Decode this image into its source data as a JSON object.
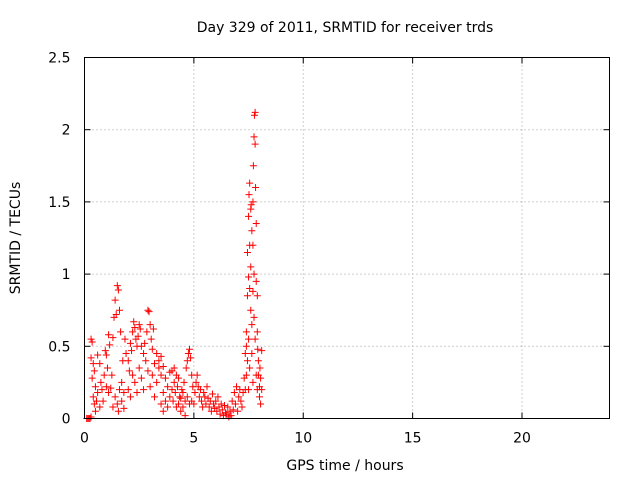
{
  "chart_data": {
    "type": "scatter",
    "title": "Day 329 of 2011, SRMTID for receiver trds",
    "xlabel": "GPS time / hours",
    "ylabel": "SRMTID / TECUs",
    "xlim": [
      0,
      24
    ],
    "ylim": [
      0,
      2.5
    ],
    "xticks": [
      0,
      5,
      10,
      15,
      20
    ],
    "xtick_labels": [
      "0",
      "5",
      "10",
      "15",
      "20"
    ],
    "yticks": [
      0,
      0.5,
      1,
      1.5,
      2,
      2.5
    ],
    "ytick_labels": [
      "0",
      "0.5",
      "1",
      "1.5",
      "2",
      "2.5"
    ],
    "grid": true,
    "legend": "none",
    "marker": "+",
    "color": "#ff0000",
    "series": [
      {
        "name": "SRMTID",
        "points": [
          [
            0.1,
            0.0
          ],
          [
            0.15,
            0.0
          ],
          [
            0.2,
            0.0
          ],
          [
            0.25,
            0.0
          ],
          [
            0.3,
            0.01
          ],
          [
            0.3,
            0.55
          ],
          [
            0.35,
            0.53
          ],
          [
            0.3,
            0.42
          ],
          [
            0.4,
            0.38
          ],
          [
            0.45,
            0.33
          ],
          [
            0.35,
            0.28
          ],
          [
            0.5,
            0.22
          ],
          [
            0.4,
            0.15
          ],
          [
            0.45,
            0.1
          ],
          [
            0.5,
            0.05
          ],
          [
            0.55,
            0.12
          ],
          [
            0.6,
            0.18
          ],
          [
            0.6,
            0.44
          ],
          [
            0.7,
            0.38
          ],
          [
            0.75,
            0.25
          ],
          [
            0.8,
            0.2
          ],
          [
            0.85,
            0.12
          ],
          [
            0.7,
            0.08
          ],
          [
            0.9,
            0.3
          ],
          [
            0.95,
            0.47
          ],
          [
            1.0,
            0.44
          ],
          [
            1.0,
            0.22
          ],
          [
            1.05,
            0.35
          ],
          [
            1.1,
            0.18
          ],
          [
            1.1,
            0.58
          ],
          [
            1.15,
            0.51
          ],
          [
            1.2,
            0.21
          ],
          [
            1.25,
            0.3
          ],
          [
            1.3,
            0.56
          ],
          [
            1.35,
            0.7
          ],
          [
            1.4,
            0.82
          ],
          [
            1.45,
            0.72
          ],
          [
            1.5,
            0.92
          ],
          [
            1.55,
            0.89
          ],
          [
            1.6,
            0.75
          ],
          [
            1.65,
            0.6
          ],
          [
            1.6,
            0.2
          ],
          [
            1.7,
            0.25
          ],
          [
            1.75,
            0.4
          ],
          [
            1.8,
            0.18
          ],
          [
            1.85,
            0.55
          ],
          [
            1.9,
            0.45
          ],
          [
            1.5,
            0.1
          ],
          [
            1.55,
            0.05
          ],
          [
            1.7,
            0.12
          ],
          [
            1.8,
            0.07
          ],
          [
            1.4,
            0.15
          ],
          [
            1.3,
            0.08
          ],
          [
            2.0,
            0.4
          ],
          [
            2.05,
            0.33
          ],
          [
            2.1,
            0.52
          ],
          [
            2.15,
            0.47
          ],
          [
            2.2,
            0.6
          ],
          [
            2.25,
            0.67
          ],
          [
            2.3,
            0.63
          ],
          [
            2.35,
            0.55
          ],
          [
            2.4,
            0.5
          ],
          [
            2.45,
            0.57
          ],
          [
            2.5,
            0.65
          ],
          [
            2.55,
            0.62
          ],
          [
            2.0,
            0.2
          ],
          [
            2.1,
            0.15
          ],
          [
            2.2,
            0.3
          ],
          [
            2.3,
            0.25
          ],
          [
            2.4,
            0.18
          ],
          [
            2.5,
            0.35
          ],
          [
            2.6,
            0.28
          ],
          [
            2.7,
            0.2
          ],
          [
            2.8,
            0.4
          ],
          [
            2.9,
            0.33
          ],
          [
            2.6,
            0.5
          ],
          [
            2.7,
            0.45
          ],
          [
            2.75,
            0.52
          ],
          [
            2.85,
            0.6
          ],
          [
            2.9,
            0.75
          ],
          [
            2.95,
            0.74
          ],
          [
            3.0,
            0.65
          ],
          [
            3.05,
            0.55
          ],
          [
            3.1,
            0.48
          ],
          [
            3.15,
            0.62
          ],
          [
            3.2,
            0.38
          ],
          [
            3.0,
            0.22
          ],
          [
            3.1,
            0.3
          ],
          [
            3.2,
            0.15
          ],
          [
            3.3,
            0.25
          ],
          [
            3.4,
            0.35
          ],
          [
            3.5,
            0.3
          ],
          [
            3.6,
            0.18
          ],
          [
            3.7,
            0.28
          ],
          [
            3.8,
            0.22
          ],
          [
            3.9,
            0.32
          ],
          [
            3.5,
            0.1
          ],
          [
            3.6,
            0.05
          ],
          [
            3.7,
            0.12
          ],
          [
            3.8,
            0.08
          ],
          [
            3.9,
            0.15
          ],
          [
            3.3,
            0.45
          ],
          [
            3.4,
            0.4
          ],
          [
            3.5,
            0.43
          ],
          [
            3.6,
            0.36
          ],
          [
            4.0,
            0.2
          ],
          [
            4.05,
            0.12
          ],
          [
            4.1,
            0.25
          ],
          [
            4.15,
            0.18
          ],
          [
            4.2,
            0.3
          ],
          [
            4.25,
            0.22
          ],
          [
            4.3,
            0.1
          ],
          [
            4.35,
            0.15
          ],
          [
            4.4,
            0.05
          ],
          [
            4.45,
            0.2
          ],
          [
            4.5,
            0.08
          ],
          [
            4.55,
            0.25
          ],
          [
            4.6,
            0.12
          ],
          [
            4.65,
            0.35
          ],
          [
            4.7,
            0.4
          ],
          [
            4.75,
            0.45
          ],
          [
            4.8,
            0.48
          ],
          [
            4.85,
            0.42
          ],
          [
            4.9,
            0.3
          ],
          [
            4.95,
            0.22
          ],
          [
            4.0,
            0.33
          ],
          [
            4.1,
            0.35
          ],
          [
            4.2,
            0.08
          ],
          [
            4.3,
            0.28
          ],
          [
            4.4,
            0.14
          ],
          [
            4.5,
            0.18
          ],
          [
            4.6,
            0.02
          ],
          [
            4.7,
            0.15
          ],
          [
            4.8,
            0.1
          ],
          [
            4.9,
            0.12
          ],
          [
            5.0,
            0.1
          ],
          [
            5.05,
            0.18
          ],
          [
            5.1,
            0.25
          ],
          [
            5.15,
            0.3
          ],
          [
            5.2,
            0.22
          ],
          [
            5.25,
            0.15
          ],
          [
            5.3,
            0.2
          ],
          [
            5.35,
            0.12
          ],
          [
            5.4,
            0.08
          ],
          [
            5.45,
            0.18
          ],
          [
            5.5,
            0.15
          ],
          [
            5.55,
            0.1
          ],
          [
            5.6,
            0.22
          ],
          [
            5.65,
            0.14
          ],
          [
            5.7,
            0.08
          ],
          [
            5.75,
            0.12
          ],
          [
            5.8,
            0.05
          ],
          [
            5.85,
            0.17
          ],
          [
            5.9,
            0.1
          ],
          [
            5.95,
            0.07
          ],
          [
            6.0,
            0.12
          ],
          [
            6.05,
            0.05
          ],
          [
            6.1,
            0.15
          ],
          [
            6.15,
            0.08
          ],
          [
            6.2,
            0.03
          ],
          [
            6.25,
            0.1
          ],
          [
            6.3,
            0.06
          ],
          [
            6.35,
            0.02
          ],
          [
            6.4,
            0.09
          ],
          [
            6.45,
            0.04
          ],
          [
            6.5,
            0.03
          ],
          [
            6.55,
            0.08
          ],
          [
            6.6,
            0.01
          ],
          [
            6.65,
            0.05
          ],
          [
            6.7,
            0.02
          ],
          [
            6.75,
            0.12
          ],
          [
            6.8,
            0.06
          ],
          [
            6.85,
            0.18
          ],
          [
            6.9,
            0.1
          ],
          [
            6.95,
            0.22
          ],
          [
            7.0,
            0.05
          ],
          [
            7.05,
            0.15
          ],
          [
            7.1,
            0.2
          ],
          [
            7.15,
            0.12
          ],
          [
            7.2,
            0.08
          ],
          [
            7.25,
            0.18
          ],
          [
            7.3,
            0.28
          ],
          [
            7.35,
            0.45
          ],
          [
            7.4,
            0.6
          ],
          [
            7.45,
            0.85
          ],
          [
            7.5,
            1.4
          ],
          [
            7.52,
            1.55
          ],
          [
            7.55,
            1.63
          ],
          [
            7.55,
            1.2
          ],
          [
            7.6,
            1.05
          ],
          [
            7.62,
            1.48
          ],
          [
            7.65,
            1.3
          ],
          [
            7.65,
            0.65
          ],
          [
            7.7,
            0.88
          ],
          [
            7.7,
            1.5
          ],
          [
            7.72,
            1.75
          ],
          [
            7.75,
            1.95
          ],
          [
            7.77,
            2.1
          ],
          [
            7.8,
            2.12
          ],
          [
            7.8,
            1.9
          ],
          [
            7.82,
            1.6
          ],
          [
            7.85,
            1.35
          ],
          [
            7.85,
            0.95
          ],
          [
            7.9,
            0.85
          ],
          [
            7.9,
            0.6
          ],
          [
            7.92,
            0.48
          ],
          [
            7.95,
            0.4
          ],
          [
            7.95,
            0.3
          ],
          [
            8.0,
            0.22
          ],
          [
            8.0,
            0.15
          ],
          [
            8.02,
            0.35
          ],
          [
            8.05,
            0.28
          ],
          [
            8.05,
            0.1
          ],
          [
            8.1,
            0.47
          ],
          [
            8.1,
            0.2
          ],
          [
            7.4,
            0.3
          ],
          [
            7.45,
            0.4
          ],
          [
            7.5,
            0.55
          ],
          [
            7.5,
            0.2
          ],
          [
            7.55,
            0.35
          ],
          [
            7.6,
            0.75
          ],
          [
            7.65,
            0.45
          ],
          [
            7.7,
            0.25
          ],
          [
            7.75,
            0.7
          ],
          [
            7.8,
            0.55
          ],
          [
            7.85,
            0.3
          ],
          [
            7.9,
            0.2
          ],
          [
            7.75,
            1.0
          ],
          [
            7.7,
            1.2
          ],
          [
            7.6,
            1.45
          ],
          [
            7.55,
            0.9
          ],
          [
            7.5,
            0.98
          ],
          [
            7.45,
            1.15
          ],
          [
            7.4,
            0.5
          ],
          [
            7.35,
            0.2
          ]
        ]
      }
    ]
  }
}
